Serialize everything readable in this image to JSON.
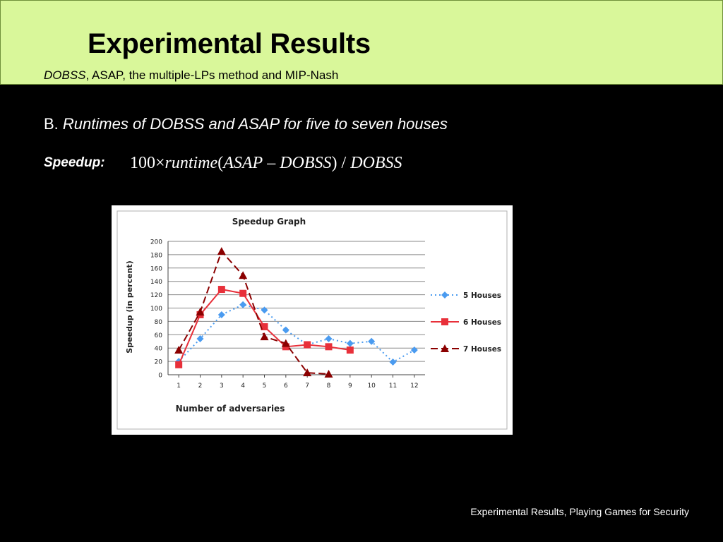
{
  "slide": {
    "title": "Experimental Results",
    "subtitle_em": "DOBSS",
    "subtitle_rest": ", ASAP, the multiple-LPs method and MIP-Nash",
    "section_prefix": "B. ",
    "section_em": "Runtimes of DOBSS and ASAP for five to seven houses",
    "speedup_label": "Speedup:",
    "formula": {
      "number": "100",
      "times": "×",
      "func": "runtime",
      "open": "(",
      "var_a": "ASAP",
      "minus": " – ",
      "var_b": "DOBSS",
      "close": ") / ",
      "var_c": "DOBSS"
    },
    "footer": "Experimental Results, Playing Games for Security"
  },
  "colors": {
    "header_band": "#d9f79a",
    "background": "#000000",
    "series_5": "#4a9bf0",
    "series_6": "#e8303a",
    "series_7": "#8b0000"
  },
  "chart_data": {
    "type": "line",
    "title": "Speedup Graph",
    "xlabel": "Number of adversaries",
    "ylabel": "Speedup (in percent)",
    "categories": [
      "1",
      "2",
      "3",
      "4",
      "5",
      "6",
      "7",
      "8",
      "9",
      "10",
      "11",
      "12"
    ],
    "ylim": [
      0,
      200
    ],
    "yticks": [
      0,
      20,
      40,
      60,
      80,
      100,
      120,
      140,
      160,
      180,
      200
    ],
    "grid": true,
    "legend": "right",
    "series": [
      {
        "name": "5 Houses",
        "style": "dotted",
        "marker": "diamond",
        "x": [
          1,
          2,
          3,
          4,
          5,
          6,
          7,
          8,
          9,
          10,
          11,
          12
        ],
        "values": [
          20,
          54,
          90,
          105,
          97,
          67,
          45,
          54,
          47,
          50,
          19,
          37
        ]
      },
      {
        "name": "6 Houses",
        "style": "solid",
        "marker": "square",
        "x": [
          1,
          2,
          3,
          4,
          5,
          6,
          7,
          8,
          9
        ],
        "values": [
          15,
          90,
          128,
          122,
          72,
          42,
          45,
          42,
          37
        ]
      },
      {
        "name": "7 Houses",
        "style": "dashed",
        "marker": "triangle",
        "x": [
          1,
          2,
          3,
          4,
          5,
          6,
          7,
          8
        ],
        "values": [
          37,
          94,
          185,
          149,
          57,
          47,
          3,
          1
        ]
      }
    ]
  }
}
